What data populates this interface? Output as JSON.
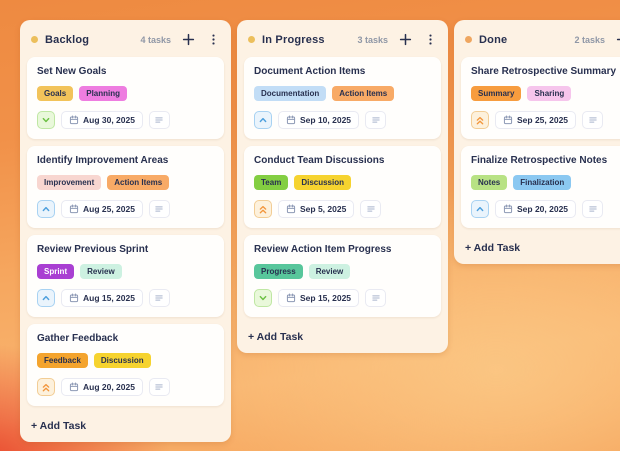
{
  "theme": {
    "text_dark": "#28304f",
    "text_muted": "#8f97a6",
    "column_bg": "#fdf2e4",
    "card_bg": "#fffefc",
    "chip_border": "#e9eaf2",
    "icon_muted": "#8d99b5",
    "bg_orange": "#f09149",
    "bg_orange_light": "#fbc683",
    "bg_red": "#e8402a"
  },
  "priorities": {
    "low": {
      "bg": "#e9f8da",
      "border": "#bfe7a3",
      "color": "#6cc043",
      "icon": "chevron-down"
    },
    "medium": {
      "bg": "#eaf4fc",
      "border": "#a8d2f2",
      "color": "#4c9fdd",
      "icon": "chevron-up"
    },
    "high": {
      "bg": "#fdf1dc",
      "border": "#f2cd95",
      "color": "#f2963c",
      "icon": "chevrons-up"
    }
  },
  "board": {
    "columns": [
      {
        "name": "Backlog",
        "count_label": "4 tasks",
        "dot_color": "#ecbf5c",
        "add_task_label": "+ Add Task",
        "cards": [
          {
            "title": "Set New Goals",
            "priority": "low",
            "due_date": "Aug 30, 2025",
            "tags": [
              {
                "label": "Goals",
                "bg": "#f2c35a",
                "fg": "#28304f"
              },
              {
                "label": "Planning",
                "bg": "#ee7de0",
                "fg": "#28304f"
              }
            ]
          },
          {
            "title": "Identify Improvement Areas",
            "priority": "medium",
            "due_date": "Aug 25, 2025",
            "tags": [
              {
                "label": "Improvement",
                "bg": "#f8d6d0",
                "fg": "#28304f"
              },
              {
                "label": "Action Items",
                "bg": "#f8aa66",
                "fg": "#28304f"
              }
            ]
          },
          {
            "title": "Review Previous Sprint",
            "priority": "medium",
            "due_date": "Aug 15, 2025",
            "tags": [
              {
                "label": "Sprint",
                "bg": "#a93fd2",
                "fg": "#ffffff"
              },
              {
                "label": "Review",
                "bg": "#cdf1e1",
                "fg": "#28304f"
              }
            ]
          },
          {
            "title": "Gather Feedback",
            "priority": "high",
            "due_date": "Aug 20, 2025",
            "tags": [
              {
                "label": "Feedback",
                "bg": "#f4a42e",
                "fg": "#28304f"
              },
              {
                "label": "Discussion",
                "bg": "#f6d32f",
                "fg": "#28304f"
              }
            ]
          }
        ]
      },
      {
        "name": "In Progress",
        "count_label": "3 tasks",
        "dot_color": "#ecbf5c",
        "add_task_label": "+ Add Task",
        "cards": [
          {
            "title": "Document Action Items",
            "priority": "medium",
            "due_date": "Sep 10, 2025",
            "tags": [
              {
                "label": "Documentation",
                "bg": "#c2ddf6",
                "fg": "#28304f"
              },
              {
                "label": "Action Items",
                "bg": "#f8aa66",
                "fg": "#28304f"
              }
            ]
          },
          {
            "title": "Conduct Team Discussions",
            "priority": "high",
            "due_date": "Sep 5, 2025",
            "tags": [
              {
                "label": "Team",
                "bg": "#83ce41",
                "fg": "#28304f"
              },
              {
                "label": "Discussion",
                "bg": "#f6d32f",
                "fg": "#28304f"
              }
            ]
          },
          {
            "title": "Review Action Item Progress",
            "priority": "low",
            "due_date": "Sep 15, 2025",
            "tags": [
              {
                "label": "Progress",
                "bg": "#58c69b",
                "fg": "#28304f"
              },
              {
                "label": "Review",
                "bg": "#cdf1e1",
                "fg": "#28304f"
              }
            ]
          }
        ]
      },
      {
        "name": "Done",
        "count_label": "2 tasks",
        "dot_color": "#efa660",
        "add_task_label": "+ Add Task",
        "cards": [
          {
            "title": "Share Retrospective Summary",
            "priority": "high",
            "due_date": "Sep 25, 2025",
            "tags": [
              {
                "label": "Summary",
                "bg": "#f79c3e",
                "fg": "#28304f"
              },
              {
                "label": "Sharing",
                "bg": "#f6c5ec",
                "fg": "#28304f"
              }
            ]
          },
          {
            "title": "Finalize Retrospective Notes",
            "priority": "medium",
            "due_date": "Sep 20, 2025",
            "tags": [
              {
                "label": "Notes",
                "bg": "#b8e284",
                "fg": "#28304f"
              },
              {
                "label": "Finalization",
                "bg": "#8bc8f1",
                "fg": "#28304f"
              }
            ]
          }
        ]
      }
    ]
  }
}
